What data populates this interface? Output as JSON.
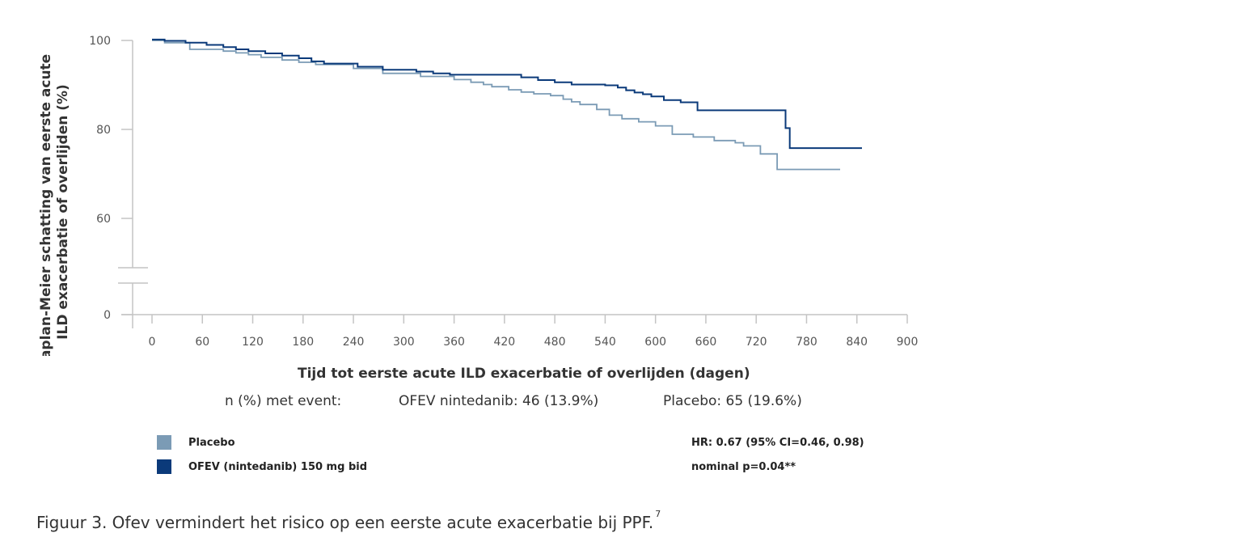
{
  "chart_data": {
    "type": "line",
    "ylabel_line1": "Kaplan-Meier schatting van eerste acute",
    "ylabel_line2": "ILD exacerbatie of overlijden (%)",
    "xlabel": "Tijd tot eerste acute ILD exacerbatie of overlijden (dagen)",
    "x_ticks": [
      0,
      60,
      120,
      180,
      240,
      300,
      360,
      420,
      480,
      540,
      600,
      660,
      720,
      780,
      840,
      900
    ],
    "y_ticks": [
      100,
      80,
      60,
      0
    ],
    "xlim": [
      0,
      900
    ],
    "y_axis_break": true,
    "grid": false,
    "series": [
      {
        "name": "Placebo",
        "color": "#7b9bb5",
        "x": [
          0,
          15,
          45,
          85,
          100,
          115,
          130,
          155,
          175,
          195,
          240,
          275,
          320,
          360,
          380,
          395,
          405,
          425,
          440,
          455,
          475,
          490,
          500,
          510,
          530,
          545,
          560,
          580,
          600,
          620,
          645,
          670,
          695,
          705,
          725,
          745,
          760,
          770,
          790,
          820
        ],
        "y": [
          100,
          99.5,
          98,
          97.6,
          97.2,
          96.8,
          96.2,
          95.6,
          95.1,
          94.6,
          93.7,
          92.6,
          91.9,
          91.2,
          90.6,
          90.1,
          89.6,
          88.9,
          88.4,
          88,
          87.6,
          86.8,
          86.2,
          85.6,
          84.5,
          83.2,
          82.4,
          81.7,
          80.8,
          78.9,
          78.3,
          77.5,
          77,
          76.3,
          74.5,
          71,
          71,
          71,
          71,
          71
        ]
      },
      {
        "name": "OFEV (nintedanib) 150 mg bid",
        "color": "#0b3a7a",
        "x": [
          0,
          15,
          40,
          65,
          85,
          100,
          115,
          135,
          155,
          175,
          190,
          205,
          245,
          275,
          315,
          335,
          355,
          440,
          460,
          480,
          500,
          520,
          540,
          555,
          565,
          575,
          585,
          595,
          610,
          630,
          650,
          700,
          725,
          748,
          755,
          760,
          790,
          846
        ],
        "y": [
          100.2,
          99.9,
          99.5,
          99,
          98.5,
          98,
          97.6,
          97.1,
          96.6,
          96,
          95.3,
          94.8,
          94.1,
          93.4,
          93,
          92.6,
          92.3,
          91.7,
          91.1,
          90.6,
          90.1,
          90.1,
          89.9,
          89.4,
          88.8,
          88.3,
          87.9,
          87.4,
          86.6,
          86.1,
          84.3,
          84.3,
          84.3,
          84.3,
          80.3,
          75.8,
          75.8,
          75.8
        ]
      }
    ]
  },
  "event_label": "n (%) met event:",
  "event_ofev": "OFEV nintedanib: 46 (13.9%)",
  "event_placebo": "Placebo: 65 (19.6%)",
  "legend": {
    "placebo": {
      "label": "Placebo",
      "color": "#7b9bb5"
    },
    "ofev": {
      "label": "OFEV (nintedanib) 150 mg bid",
      "color": "#0b3a7a"
    }
  },
  "hr_text": "HR: 0.67 (95% CI=0.46, 0.98)",
  "p_text": "nominal p=0.04**",
  "caption": "Figuur 3. Ofev vermindert het risico op een eerste acute exacerbatie bij PPF.",
  "caption_ref": "7"
}
